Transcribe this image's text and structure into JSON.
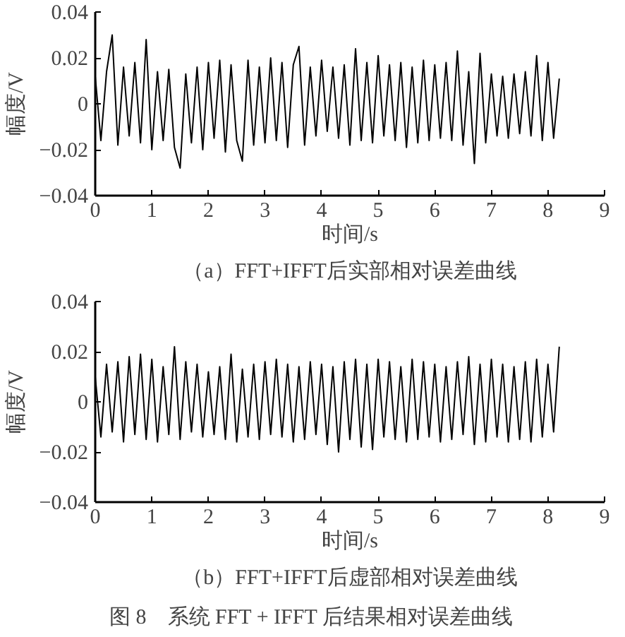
{
  "chart_data": [
    {
      "type": "line",
      "title": "（a）FFT+IFFT后实部相对误差曲线",
      "xlabel": "时间/s",
      "ylabel": "幅度/V",
      "grid": false,
      "x": [
        0,
        0.1,
        0.2,
        0.3,
        0.4,
        0.5,
        0.6,
        0.7,
        0.8,
        0.9,
        1,
        1.1,
        1.2,
        1.3,
        1.4,
        1.5,
        1.6,
        1.7,
        1.8,
        1.9,
        2,
        2.1,
        2.2,
        2.3,
        2.4,
        2.5,
        2.6,
        2.7,
        2.8,
        2.9,
        3,
        3.1,
        3.2,
        3.3,
        3.4,
        3.5,
        3.6,
        3.7,
        3.8,
        3.9,
        4,
        4.1,
        4.2,
        4.3,
        4.4,
        4.5,
        4.6,
        4.7,
        4.8,
        4.9,
        5,
        5.1,
        5.2,
        5.3,
        5.4,
        5.5,
        5.6,
        5.7,
        5.8,
        5.9,
        6,
        6.1,
        6.2,
        6.3,
        6.4,
        6.5,
        6.6,
        6.7,
        6.8,
        6.9,
        7,
        7.1,
        7.2,
        7.3,
        7.4,
        7.5,
        7.6,
        7.7,
        7.8,
        7.9,
        8,
        8.1,
        8.2
      ],
      "series": [
        {
          "color": "#000000",
          "values": [
            0.012,
            -0.016,
            0.014,
            0.03,
            -0.018,
            0.016,
            -0.014,
            0.018,
            -0.017,
            0.028,
            -0.02,
            0.014,
            -0.016,
            0.015,
            -0.019,
            -0.028,
            0.013,
            -0.017,
            0.016,
            -0.02,
            0.018,
            -0.015,
            0.019,
            -0.021,
            0.017,
            -0.016,
            -0.025,
            0.019,
            -0.018,
            0.016,
            -0.017,
            0.02,
            -0.016,
            0.018,
            -0.019,
            0.017,
            0.025,
            -0.018,
            0.016,
            -0.014,
            0.019,
            -0.012,
            0.016,
            -0.015,
            0.017,
            -0.018,
            0.024,
            -0.016,
            0.018,
            -0.017,
            0.021,
            -0.014,
            0.017,
            -0.016,
            0.018,
            -0.019,
            0.016,
            -0.017,
            0.019,
            -0.016,
            0.017,
            -0.015,
            0.018,
            -0.016,
            0.023,
            -0.018,
            0.014,
            -0.026,
            0.022,
            -0.017,
            0.013,
            -0.014,
            0.012,
            -0.015,
            0.013,
            -0.013,
            0.014,
            -0.014,
            0.021,
            -0.016,
            0.018,
            -0.015,
            0.011
          ]
        }
      ],
      "xlim": [
        0,
        9
      ],
      "xticks": [
        0,
        1,
        2,
        3,
        4,
        5,
        6,
        7,
        8,
        9
      ],
      "ylim": [
        -0.04,
        0.04
      ],
      "yticks": [
        -0.04,
        -0.02,
        0,
        0.02,
        0.04
      ]
    },
    {
      "type": "line",
      "title": "（b）FFT+IFFT后虚部相对误差曲线",
      "xlabel": "时间/s",
      "ylabel": "幅度/V",
      "grid": false,
      "annotations": [
        "图 8　系统 FFT + IFFT 后结果相对误差曲线"
      ],
      "x": [
        0,
        0.1,
        0.2,
        0.3,
        0.4,
        0.5,
        0.6,
        0.7,
        0.8,
        0.9,
        1,
        1.1,
        1.2,
        1.3,
        1.4,
        1.5,
        1.6,
        1.7,
        1.8,
        1.9,
        2,
        2.1,
        2.2,
        2.3,
        2.4,
        2.5,
        2.6,
        2.7,
        2.8,
        2.9,
        3,
        3.1,
        3.2,
        3.3,
        3.4,
        3.5,
        3.6,
        3.7,
        3.8,
        3.9,
        4,
        4.1,
        4.2,
        4.3,
        4.4,
        4.5,
        4.6,
        4.7,
        4.8,
        4.9,
        5,
        5.1,
        5.2,
        5.3,
        5.4,
        5.5,
        5.6,
        5.7,
        5.8,
        5.9,
        6,
        6.1,
        6.2,
        6.3,
        6.4,
        6.5,
        6.6,
        6.7,
        6.8,
        6.9,
        7,
        7.1,
        7.2,
        7.3,
        7.4,
        7.5,
        7.6,
        7.7,
        7.8,
        7.9,
        8,
        8.1,
        8.2
      ],
      "series": [
        {
          "color": "#000000",
          "values": [
            0.01,
            -0.014,
            0.015,
            -0.012,
            0.016,
            -0.016,
            0.018,
            -0.013,
            0.019,
            -0.015,
            0.017,
            -0.016,
            0.014,
            -0.013,
            0.022,
            -0.015,
            0.016,
            -0.012,
            0.015,
            -0.014,
            0.012,
            -0.013,
            0.014,
            -0.015,
            0.019,
            -0.016,
            0.013,
            -0.014,
            0.015,
            -0.015,
            0.016,
            -0.013,
            0.017,
            -0.014,
            0.015,
            -0.016,
            0.014,
            -0.015,
            0.016,
            -0.013,
            0.015,
            -0.017,
            0.014,
            -0.02,
            0.016,
            -0.015,
            0.017,
            -0.018,
            0.015,
            -0.019,
            0.017,
            -0.014,
            0.016,
            -0.015,
            0.014,
            -0.016,
            0.017,
            -0.015,
            0.016,
            -0.014,
            0.015,
            -0.016,
            0.014,
            -0.015,
            0.016,
            -0.013,
            0.018,
            -0.017,
            0.015,
            -0.016,
            0.017,
            -0.014,
            0.015,
            -0.016,
            0.014,
            -0.015,
            0.016,
            -0.016,
            0.017,
            -0.014,
            0.015,
            -0.012,
            0.022
          ]
        }
      ],
      "xlim": [
        0,
        9
      ],
      "xticks": [
        0,
        1,
        2,
        3,
        4,
        5,
        6,
        7,
        8,
        9
      ],
      "ylim": [
        -0.04,
        0.04
      ],
      "yticks": [
        -0.04,
        -0.02,
        0,
        0.02,
        0.04
      ]
    }
  ]
}
